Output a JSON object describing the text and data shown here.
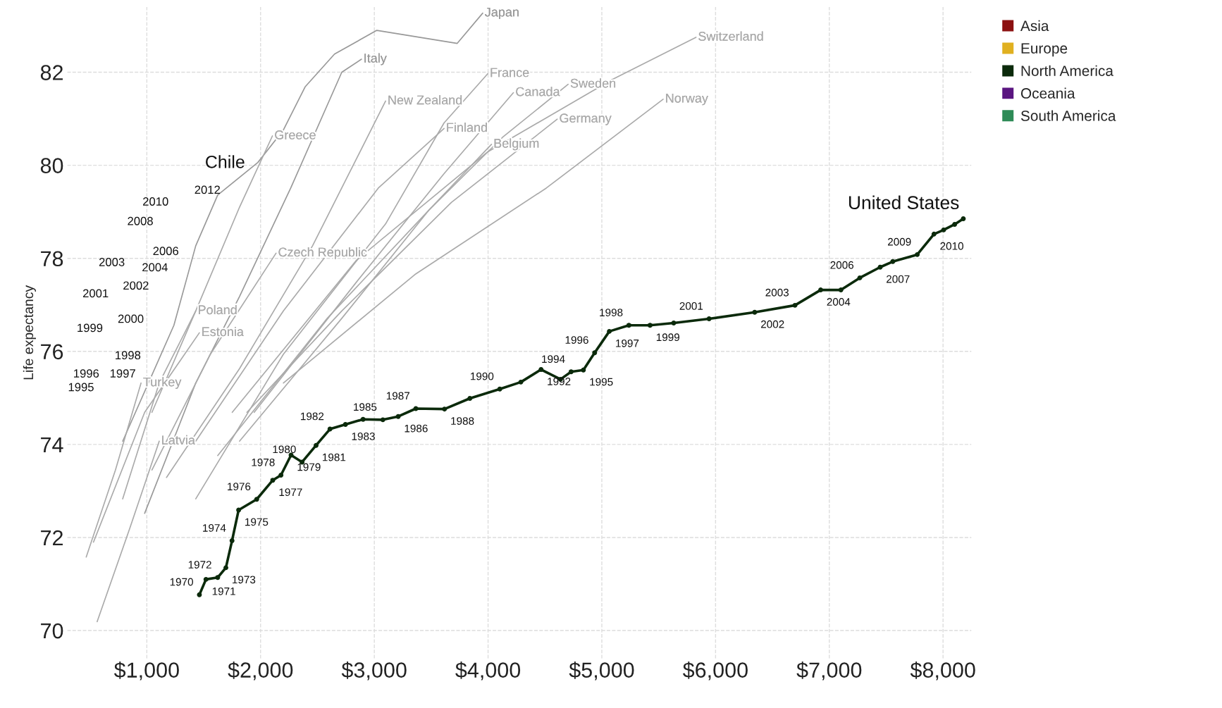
{
  "chart_data": {
    "type": "line",
    "ylabel": "Life expectancy",
    "xlim": [
      300,
      8250
    ],
    "ylim": [
      69.4,
      83.4
    ],
    "xticks": [
      {
        "value": 1000,
        "label": "$1,000"
      },
      {
        "value": 2000,
        "label": "$2,000"
      },
      {
        "value": 3000,
        "label": "$3,000"
      },
      {
        "value": 4000,
        "label": "$4,000"
      },
      {
        "value": 5000,
        "label": "$5,000"
      },
      {
        "value": 6000,
        "label": "$6,000"
      },
      {
        "value": 7000,
        "label": "$7,000"
      },
      {
        "value": 8000,
        "label": "$8,000"
      }
    ],
    "yticks": [
      70,
      72,
      74,
      76,
      78,
      80,
      82
    ],
    "grid": true,
    "legend": "top right",
    "line_style": "solid",
    "series": [
      {
        "name": "Japan",
        "color": "#999999",
        "marker": "none",
        "x": [
          788,
          1238,
          1430,
          1623,
          1976,
          2201,
          2393,
          2650,
          3022,
          3729,
          3953
        ],
        "values": [
          74.07,
          76.56,
          78.27,
          79.36,
          80.06,
          80.76,
          81.69,
          82.39,
          82.9,
          82.62,
          83.27
        ]
      },
      {
        "name": "Italy",
        "color": "#999999",
        "marker": "none",
        "x": [
          981,
          1430,
          1815,
          2265,
          2714,
          2887
        ],
        "values": [
          72.52,
          75.32,
          77.18,
          79.51,
          82.0,
          82.28
        ]
      },
      {
        "name": "France",
        "color": "#aaaaaa",
        "marker": "none",
        "x": [
          1430,
          2201,
          3099,
          3613,
          3998
        ],
        "values": [
          72.83,
          75.94,
          78.74,
          80.91,
          81.97
        ]
      },
      {
        "name": "Switzerland",
        "color": "#aaaaaa",
        "marker": "none",
        "x": [
          1751,
          2843,
          3998,
          5090,
          5828
        ],
        "values": [
          74.69,
          77.96,
          80.29,
          81.84,
          82.75
        ]
      },
      {
        "name": "New Zealand",
        "color": "#aaaaaa",
        "marker": "none",
        "x": [
          1173,
          1815,
          2457,
          3099
        ],
        "values": [
          73.29,
          75.63,
          78.27,
          81.38
        ]
      },
      {
        "name": "Sweden",
        "color": "#aaaaaa",
        "marker": "none",
        "x": [
          1623,
          2586,
          3485,
          4127,
          4704
        ],
        "values": [
          73.76,
          76.71,
          79.05,
          80.6,
          81.74
        ]
      },
      {
        "name": "Canada",
        "color": "#aaaaaa",
        "marker": "none",
        "x": [
          1944,
          2843,
          3613,
          4223
        ],
        "values": [
          74.69,
          77.49,
          79.82,
          81.56
        ]
      },
      {
        "name": "Norway",
        "color": "#aaaaaa",
        "marker": "none",
        "x": [
          2201,
          3356,
          4512,
          5539
        ],
        "values": [
          75.32,
          77.65,
          79.51,
          81.42
        ]
      },
      {
        "name": "Germany",
        "color": "#aaaaaa",
        "marker": "none",
        "x": [
          1880,
          2714,
          3677,
          4608
        ],
        "values": [
          74.69,
          76.87,
          79.2,
          80.99
        ]
      },
      {
        "name": "Finland",
        "color": "#aaaaaa",
        "marker": "none",
        "x": [
          1430,
          2201,
          3035,
          3613
        ],
        "values": [
          74.07,
          76.87,
          79.51,
          80.79
        ]
      },
      {
        "name": "Greece",
        "color": "#aaaaaa",
        "marker": "none",
        "x": [
          1045,
          1430,
          1815,
          2104
        ],
        "values": [
          74.69,
          76.87,
          79.1,
          80.63
        ]
      },
      {
        "name": "Belgium",
        "color": "#aaaaaa",
        "marker": "none",
        "x": [
          1815,
          2714,
          3485,
          4030
        ],
        "values": [
          74.07,
          76.71,
          79.05,
          80.45
        ]
      },
      {
        "name": "Czech Republic",
        "color": "#aaaaaa",
        "marker": "none",
        "x": [
          1045,
          1559,
          2136
        ],
        "values": [
          73.45,
          75.94,
          78.11
        ]
      },
      {
        "name": "Poland",
        "color": "#aaaaaa",
        "marker": "none",
        "x": [
          788,
          1109,
          1430
        ],
        "values": [
          72.83,
          75.32,
          76.87
        ]
      },
      {
        "name": "Estonia",
        "color": "#aaaaaa",
        "marker": "none",
        "x": [
          531,
          981,
          1462
        ],
        "values": [
          71.9,
          74.69,
          76.4
        ]
      },
      {
        "name": "Turkey",
        "color": "#aaaaaa",
        "marker": "none",
        "x": [
          467,
          724,
          949
        ],
        "values": [
          71.58,
          73.45,
          75.32
        ]
      },
      {
        "name": "Latvia",
        "color": "#aaaaaa",
        "marker": "none",
        "x": [
          563,
          852,
          1109
        ],
        "values": [
          70.19,
          72.21,
          74.07
        ]
      },
      {
        "name": "United States",
        "color": "#0b2a0b",
        "marker": "circle",
        "x": [
          1462,
          1520,
          1623,
          1695,
          1749,
          1807,
          1966,
          2107,
          2179,
          2268,
          2365,
          2488,
          2610,
          2746,
          2901,
          3075,
          3210,
          3365,
          3617,
          3840,
          4103,
          4288,
          4466,
          4637,
          4730,
          4838,
          4937,
          5066,
          5238,
          5424,
          5632,
          5943,
          6344,
          6698,
          6924,
          7102,
          7268,
          7447,
          7558,
          7773,
          7920,
          8005,
          8102,
          8178
        ],
        "values": [
          70.77,
          71.1,
          71.14,
          71.35,
          71.93,
          72.59,
          72.82,
          73.23,
          73.34,
          73.77,
          73.62,
          73.98,
          74.33,
          74.43,
          74.54,
          74.53,
          74.6,
          74.77,
          74.76,
          74.99,
          75.19,
          75.34,
          75.61,
          75.4,
          75.56,
          75.6,
          75.97,
          76.43,
          76.56,
          76.56,
          76.61,
          76.7,
          76.84,
          76.99,
          77.32,
          77.32,
          77.58,
          77.81,
          77.93,
          78.08,
          78.52,
          78.61,
          78.73,
          78.85
        ]
      },
      {
        "name": "Asia",
        "color": "#8b1010",
        "type": "scatter"
      },
      {
        "name": "Europe",
        "color": "#e0b020",
        "type": "scatter"
      },
      {
        "name": "North America",
        "color": "#0b2a0b",
        "type": "scatter"
      },
      {
        "name": "Oceania",
        "color": "#5a1580",
        "type": "scatter"
      },
      {
        "name": "South America",
        "color": "#2e8b57",
        "type": "scatter"
      }
    ],
    "annotations": [
      "Chile",
      "1995",
      "1996",
      "1997",
      "1998",
      "1999",
      "2000",
      "2001",
      "2002",
      "2003",
      "2004",
      "2006",
      "2008",
      "2010",
      "2012",
      {
        "text": "1970",
        "x": 1462,
        "y": 70.77
      },
      {
        "text": "1971",
        "x": 1520,
        "y": 71.1
      },
      {
        "text": "1972",
        "x": 1623,
        "y": 71.14
      },
      {
        "text": "1973",
        "x": 1695,
        "y": 71.35
      },
      {
        "text": "1974",
        "x": 1749,
        "y": 71.93
      },
      {
        "text": "1975",
        "x": 1807,
        "y": 72.59
      },
      {
        "text": "1976",
        "x": 1966,
        "y": 72.82
      },
      {
        "text": "1977",
        "x": 2107,
        "y": 73.23
      },
      {
        "text": "1978",
        "x": 2179,
        "y": 73.34
      },
      {
        "text": "1979",
        "x": 2268,
        "y": 73.77
      },
      {
        "text": "1980",
        "x": 2365,
        "y": 73.62
      },
      {
        "text": "1981",
        "x": 2488,
        "y": 73.98
      },
      {
        "text": "1982",
        "x": 2610,
        "y": 74.33
      },
      {
        "text": "1983",
        "x": 2746,
        "y": 74.43
      },
      {
        "text": "1985",
        "x": 3075,
        "y": 74.53
      },
      {
        "text": "1986",
        "x": 3210,
        "y": 74.6
      },
      {
        "text": "1987",
        "x": 3365,
        "y": 74.77
      },
      {
        "text": "1988",
        "x": 3617,
        "y": 74.76
      },
      {
        "text": "1990",
        "x": 4103,
        "y": 75.19
      },
      {
        "text": "1992",
        "x": 4466,
        "y": 75.61
      },
      {
        "text": "1994",
        "x": 4730,
        "y": 75.56
      },
      {
        "text": "1995",
        "x": 4838,
        "y": 75.6
      },
      {
        "text": "1996",
        "x": 4937,
        "y": 75.97
      },
      {
        "text": "1997",
        "x": 5066,
        "y": 76.43
      },
      {
        "text": "1998",
        "x": 5238,
        "y": 76.56
      },
      {
        "text": "1999",
        "x": 5424,
        "y": 76.56
      },
      {
        "text": "2001",
        "x": 5943,
        "y": 76.7
      },
      {
        "text": "2002",
        "x": 6344,
        "y": 76.84
      },
      {
        "text": "2003",
        "x": 6698,
        "y": 76.99
      },
      {
        "text": "2004",
        "x": 6924,
        "y": 77.32
      },
      {
        "text": "2006",
        "x": 7268,
        "y": 77.58
      },
      {
        "text": "2007",
        "x": 7447,
        "y": 77.81
      },
      {
        "text": "2009",
        "x": 7773,
        "y": 78.08
      },
      {
        "text": "2010",
        "x": 7920,
        "y": 78.52
      }
    ]
  }
}
